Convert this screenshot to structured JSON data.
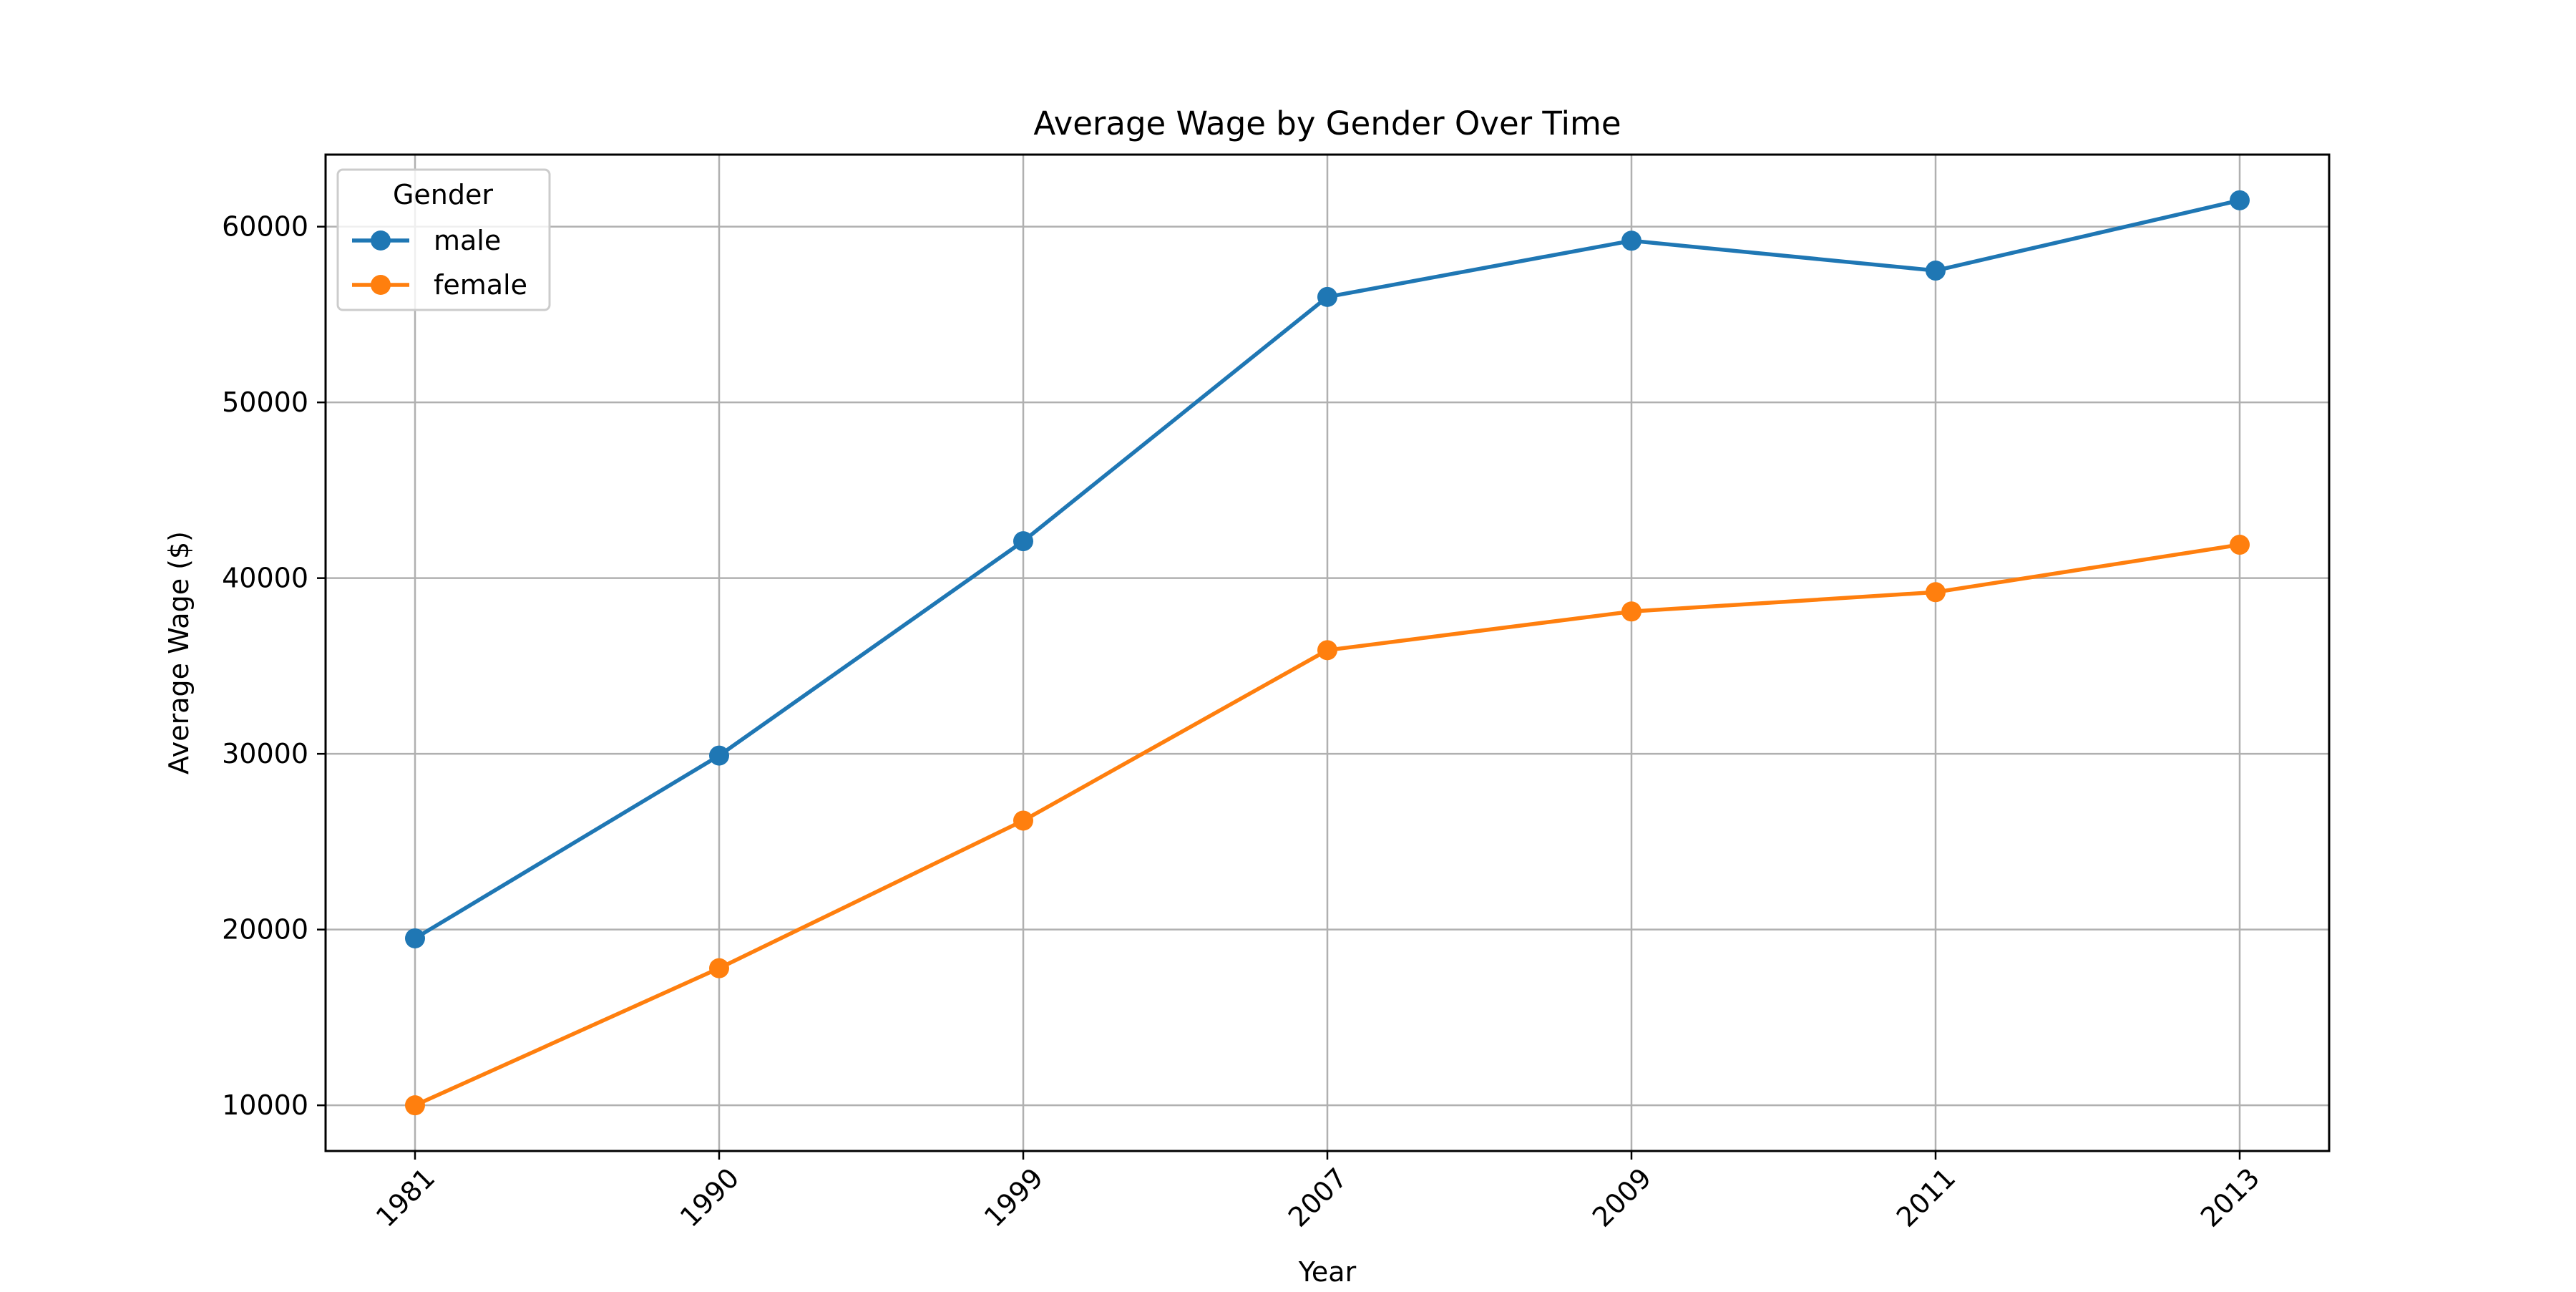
{
  "chart_data": {
    "type": "line",
    "title": "Average Wage by Gender Over Time",
    "xlabel": "Year",
    "ylabel": "Average Wage ($)",
    "categories": [
      "1981",
      "1990",
      "1999",
      "2007",
      "2009",
      "2011",
      "2013"
    ],
    "y_ticks": [
      10000,
      20000,
      30000,
      40000,
      50000,
      60000
    ],
    "ylim": [
      7400,
      64100
    ],
    "grid": true,
    "legend": {
      "title": "Gender",
      "placement": "upper-left"
    },
    "series": [
      {
        "name": "male",
        "color": "#1f77b4",
        "values": [
          19500,
          29900,
          42100,
          56000,
          59200,
          57500,
          61500
        ]
      },
      {
        "name": "female",
        "color": "#ff7f0e",
        "values": [
          10000,
          17800,
          26200,
          35900,
          38100,
          39200,
          41900
        ]
      }
    ],
    "x_tick_rotation": 45
  }
}
